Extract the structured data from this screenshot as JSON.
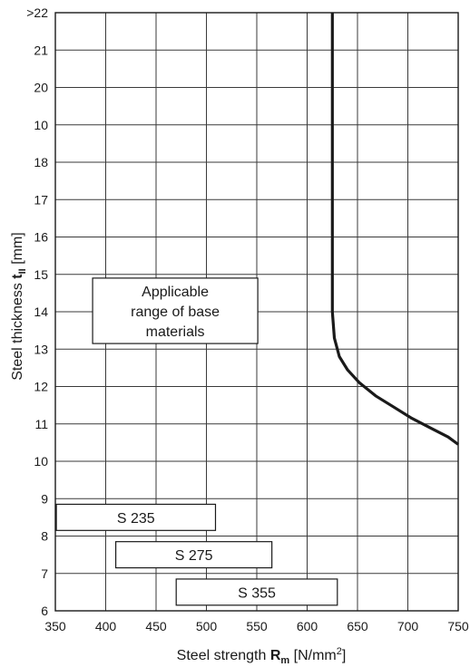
{
  "chart_data": {
    "type": "line",
    "x_axis": {
      "label_prefix": "Steel strength ",
      "label_symbol": "R",
      "label_subscript": "m",
      "label_unit_pre": " [N/mm",
      "label_unit_sup": "2",
      "label_unit_post": "]",
      "range": [
        350,
        750
      ],
      "ticks": [
        "350",
        "400",
        "450",
        "500",
        "550",
        "600",
        "650",
        "700",
        "750"
      ]
    },
    "y_axis": {
      "label_prefix": "Steel thickness ",
      "label_symbol": "t",
      "label_subscript": "II",
      "label_unit": " [mm]",
      "ticks": [
        "6",
        "7",
        "8",
        "9",
        "10",
        "11",
        "12",
        "13",
        "14",
        "15",
        "16",
        "17",
        "18",
        "10",
        "20",
        "21",
        ">22"
      ]
    },
    "grid": true,
    "boundary_curve": {
      "x": [
        625,
        625,
        625,
        627,
        632,
        640,
        652,
        668,
        686,
        704,
        722,
        740,
        750
      ],
      "y": [
        22,
        18,
        14,
        13.3,
        12.8,
        12.45,
        12.1,
        11.75,
        11.45,
        11.15,
        10.9,
        10.65,
        10.45
      ]
    },
    "annotations": [
      {
        "name": "applicable-range",
        "lines": [
          "Applicable",
          "range of base",
          "materials"
        ],
        "x_range": [
          387,
          551
        ],
        "y_range": [
          13.15,
          14.9
        ]
      },
      {
        "name": "s235",
        "lines": [
          "S 235"
        ],
        "x_range": [
          351,
          509
        ],
        "y_range": [
          8.15,
          8.85
        ]
      },
      {
        "name": "s275",
        "lines": [
          "S 275"
        ],
        "x_range": [
          410,
          565
        ],
        "y_range": [
          7.15,
          7.85
        ]
      },
      {
        "name": "s355",
        "lines": [
          "S 355"
        ],
        "x_range": [
          470,
          630
        ],
        "y_range": [
          6.15,
          6.85
        ]
      }
    ]
  }
}
